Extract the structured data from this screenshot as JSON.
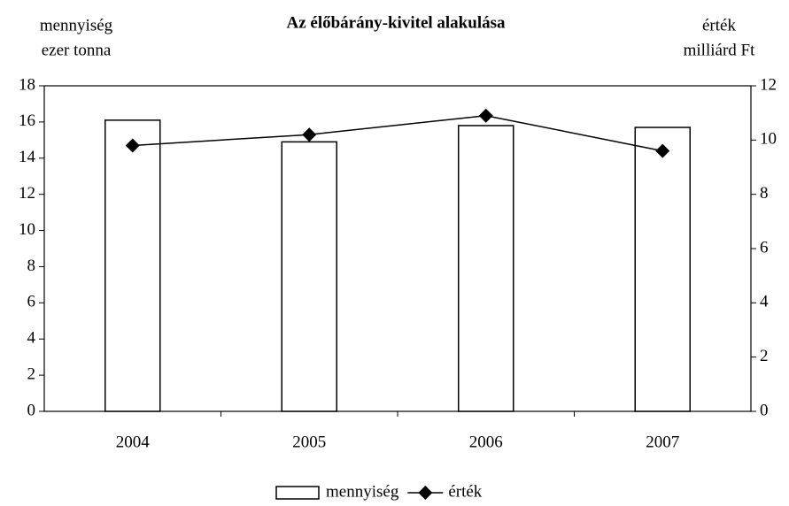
{
  "chart_data": {
    "type": "combo",
    "title": "Az élőbárány-kivitel alakulása",
    "y_label": [
      "mennyiség",
      "ezer tonna"
    ],
    "y2_label": [
      "érték",
      "milliárd Ft"
    ],
    "categories": [
      "2004",
      "2005",
      "2006",
      "2007"
    ],
    "series": [
      {
        "name": "mennyiség",
        "type": "bar",
        "color": "#ffffff",
        "values": [
          16.1,
          14.9,
          15.8,
          15.7
        ]
      },
      {
        "name": "érték",
        "type": "line",
        "axis": "y2",
        "color": "#000000",
        "values": [
          9.8,
          10.2,
          10.9,
          9.6
        ]
      }
    ],
    "ylim": [
      0,
      18
    ],
    "yticks": [
      0,
      2,
      4,
      6,
      8,
      10,
      12,
      14,
      16,
      18
    ],
    "y2lim": [
      0,
      12
    ],
    "y2ticks": [
      0,
      2,
      4,
      6,
      8,
      10,
      12
    ],
    "legend": "bottom"
  }
}
